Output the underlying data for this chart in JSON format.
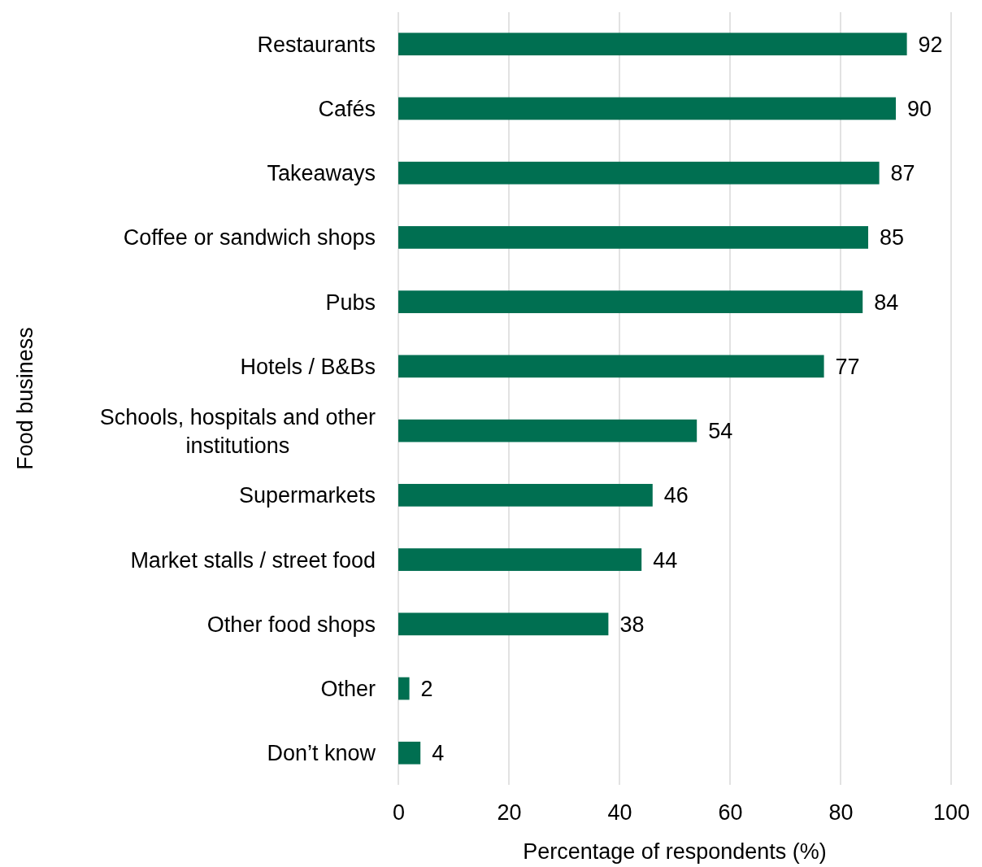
{
  "chart_data": {
    "type": "bar",
    "orientation": "horizontal",
    "xlabel": "Percentage of respondents (%)",
    "ylabel": "Food business",
    "categories": [
      "Restaurants",
      "Cafés",
      "Takeaways",
      "Coffee or sandwich shops",
      "Pubs",
      "Hotels / B&Bs",
      "Schools, hospitals and other institutions",
      "Supermarkets",
      "Market stalls / street food",
      "Other food shops",
      "Other",
      "Don’t know"
    ],
    "values": [
      92,
      90,
      87,
      85,
      84,
      77,
      54,
      46,
      44,
      38,
      2,
      4
    ],
    "color": "#006f51",
    "xlim": [
      0,
      100
    ],
    "xticks": [
      0,
      20,
      40,
      60,
      80,
      100
    ],
    "grid": "x",
    "data_labels": true
  }
}
